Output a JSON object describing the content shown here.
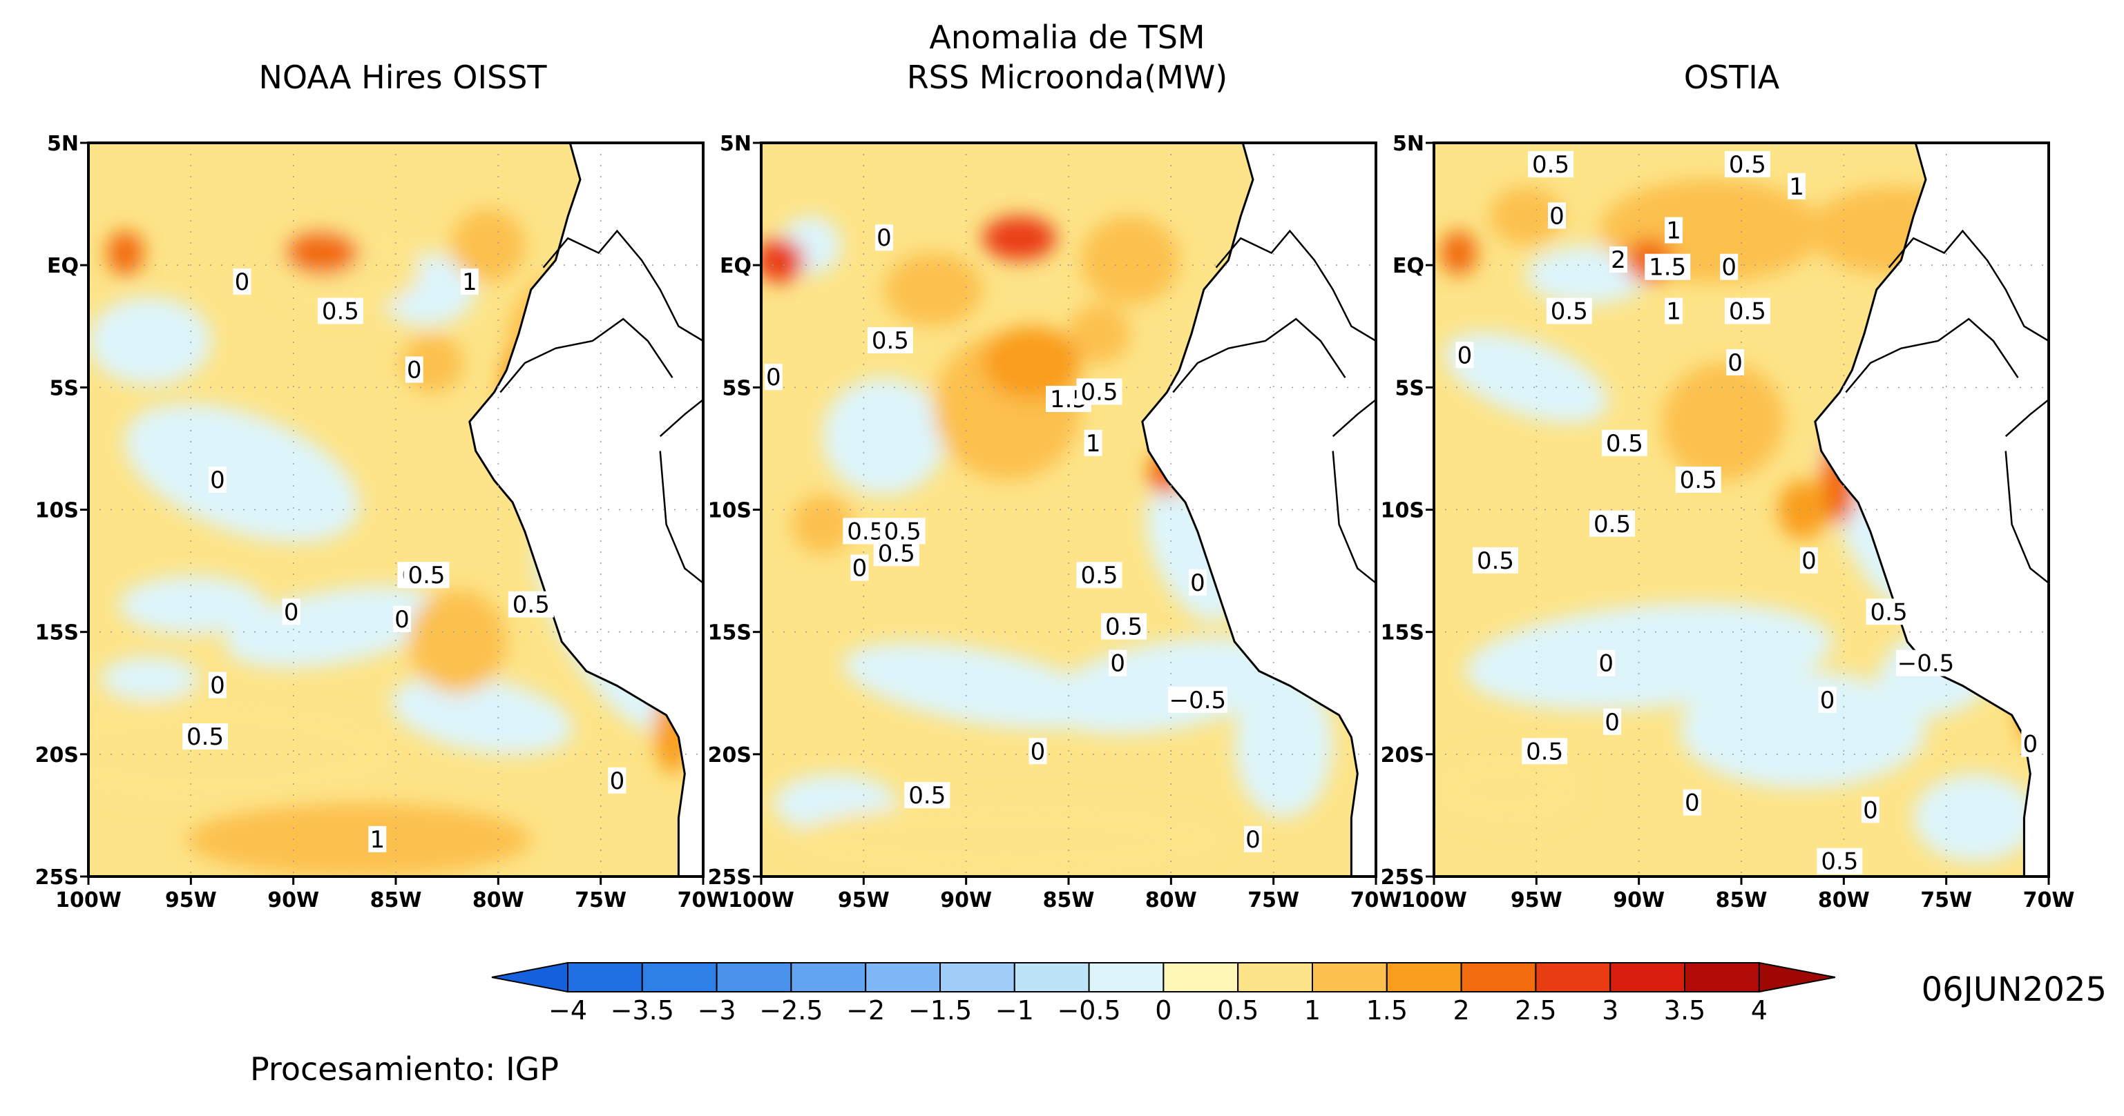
{
  "suptitle_line1": "Anomalia de TSM",
  "panels": [
    {
      "title": "NOAA Hires OISST",
      "contour_labels": [
        "0",
        "0.5",
        "1",
        "0",
        "0.5",
        "0",
        "0.5",
        "0",
        "0",
        "0",
        "0.5",
        "0",
        "1",
        "0.5"
      ]
    },
    {
      "title": "RSS Microonda(MW)",
      "contour_labels": [
        "0",
        "0.5",
        "0",
        "0.5",
        "1.5",
        "1",
        "0.5",
        "0",
        "0.5",
        "0.5",
        "0",
        "0.5",
        "0",
        "−0.5",
        "0",
        "0.5",
        "0",
        "0.5"
      ]
    },
    {
      "title": "OSTIA",
      "contour_labels": [
        "0.5",
        "0.5",
        "1",
        "0",
        "1",
        "2",
        "1.5",
        "0",
        "0.5",
        "1",
        "0.5",
        "0",
        "0",
        "0.5",
        "0.5",
        "0.5",
        "0.5",
        "0",
        "0.5",
        "0",
        "−0.5",
        "0",
        "0",
        "0.5",
        "0",
        "0",
        "0",
        "0.5"
      ]
    }
  ],
  "axes": {
    "lat_ticks": [
      "5N",
      "EQ",
      "5S",
      "10S",
      "15S",
      "20S",
      "25S"
    ],
    "lon_ticks": [
      "100W",
      "95W",
      "90W",
      "85W",
      "80W",
      "75W",
      "70W"
    ]
  },
  "colorbar": {
    "labels": [
      "−4",
      "−3.5",
      "−3",
      "−2.5",
      "−2",
      "−1.5",
      "−1",
      "−0.5",
      "0",
      "0.5",
      "1",
      "1.5",
      "2",
      "2.5",
      "3",
      "3.5",
      "4"
    ],
    "colors": [
      "#1f6fe0",
      "#2f80e6",
      "#4a93ec",
      "#62a4f0",
      "#7fb8f4",
      "#9fcdf7",
      "#bde3f9",
      "#ddf4fb",
      "#fff7b5",
      "#fde488",
      "#fcc04e",
      "#f99d1c",
      "#f26b0f",
      "#ea3c12",
      "#d81e0e",
      "#b30b08"
    ],
    "low_arrow": "#1560dc",
    "high_arrow": "#a00806"
  },
  "date": "06JUN2025",
  "credit": "Procesamiento: IGP",
  "colors": {
    "land": "#ffffff",
    "ocean_base": "#fde488",
    "coast": "#000000"
  }
}
